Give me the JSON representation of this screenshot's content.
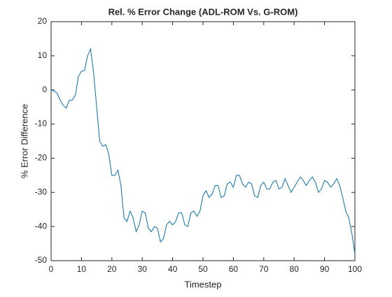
{
  "chart_data": {
    "type": "line",
    "title": "Rel. % Error Change (ADL-ROM Vs. G-ROM)",
    "xlabel": "Timestep",
    "ylabel": "% Error Difference",
    "x": [
      0,
      1,
      2,
      3,
      4,
      5,
      6,
      7,
      8,
      9,
      10,
      11,
      12,
      13,
      14,
      15,
      16,
      17,
      18,
      19,
      20,
      21,
      22,
      23,
      24,
      25,
      26,
      27,
      28,
      29,
      30,
      31,
      32,
      33,
      34,
      35,
      36,
      37,
      38,
      39,
      40,
      41,
      42,
      43,
      44,
      45,
      46,
      47,
      48,
      49,
      50,
      51,
      52,
      53,
      54,
      55,
      56,
      57,
      58,
      59,
      60,
      61,
      62,
      63,
      64,
      65,
      66,
      67,
      68,
      69,
      70,
      71,
      72,
      73,
      74,
      75,
      76,
      77,
      78,
      79,
      80,
      81,
      82,
      83,
      84,
      85,
      86,
      87,
      88,
      89,
      90,
      91,
      92,
      93,
      94,
      95,
      96,
      97,
      98,
      99,
      100
    ],
    "series": [
      {
        "name": "% Error Difference",
        "color": "#0072bd",
        "values": [
          0,
          -0.3,
          -1,
          -3,
          -4.5,
          -5.3,
          -3,
          -3,
          -1.5,
          4,
          5.5,
          5.7,
          10,
          12,
          5,
          -5,
          -15,
          -16.5,
          -16,
          -19,
          -25,
          -25,
          -23.5,
          -28,
          -37.5,
          -38.5,
          -35.5,
          -37.5,
          -41.5,
          -39.5,
          -35.5,
          -36,
          -40.5,
          -41.5,
          -40,
          -40.5,
          -44.5,
          -43.5,
          -39.5,
          -38.5,
          -39.5,
          -38.5,
          -36,
          -36,
          -39.5,
          -40,
          -36,
          -35.5,
          -37,
          -35.5,
          -31,
          -29.5,
          -31.5,
          -30.5,
          -28,
          -28,
          -31.5,
          -31,
          -27.5,
          -27,
          -28.5,
          -25,
          -25,
          -27.5,
          -28.5,
          -27,
          -27.5,
          -31,
          -31.5,
          -28,
          -27,
          -29,
          -29,
          -27,
          -26.5,
          -29,
          -28.5,
          -26,
          -28,
          -30,
          -28.5,
          -27,
          -25.5,
          -26.5,
          -28,
          -26.5,
          -25.5,
          -27,
          -30,
          -29,
          -26.5,
          -27,
          -28.5,
          -27.5,
          -26,
          -28,
          -31.5,
          -35.5,
          -37.5,
          -42,
          -48
        ]
      }
    ],
    "xlim": [
      0,
      100
    ],
    "xticks": [
      0,
      10,
      20,
      30,
      40,
      50,
      60,
      70,
      80,
      90,
      100
    ],
    "ylim": [
      -50,
      20
    ],
    "yticks": [
      -50,
      -40,
      -30,
      -20,
      -10,
      0,
      10,
      20
    ]
  }
}
